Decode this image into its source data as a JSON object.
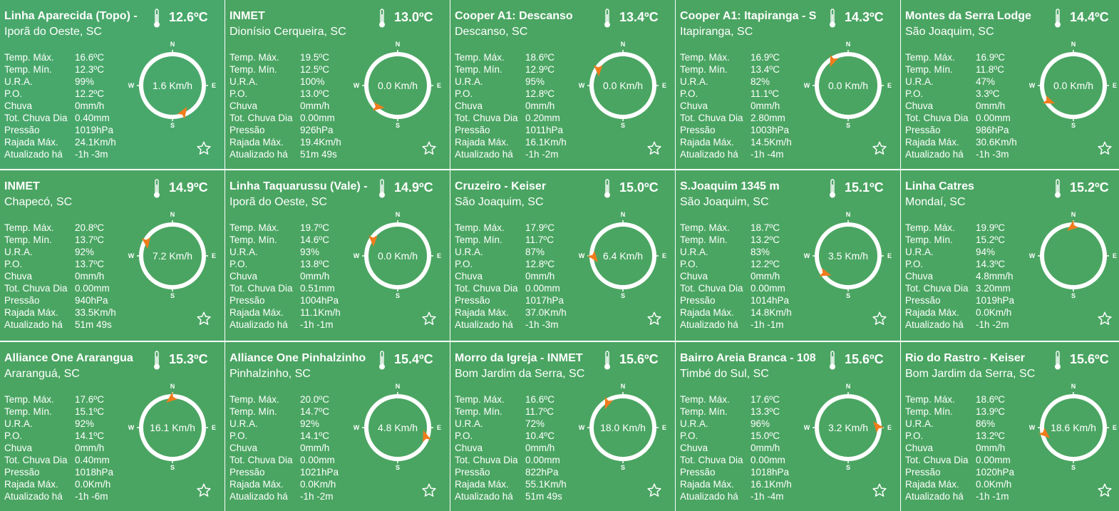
{
  "labels": {
    "temp_max": "Temp. Máx.",
    "temp_min": "Temp. Mín.",
    "ura": "U.R.A.",
    "po": "P.O.",
    "chuva": "Chuva",
    "tot_chuva": "Tot. Chuva Dia",
    "pressao": "Pressão",
    "rajada": "Rajada Máx.",
    "atualizado": "Atualizado há"
  },
  "compass_letters": {
    "n": "N",
    "s": "S",
    "e": "E",
    "w": "W"
  },
  "icons": {
    "thermometer": "thermometer-icon",
    "favorite": "star-outline-icon"
  },
  "colors": {
    "card": "#4aa562",
    "wind_arrow": "#f07c1c"
  },
  "stations": [
    {
      "name": "Linha Aparecida (Topo) -",
      "city": "Iporã do Oeste, SC",
      "temp": "12.6ºC",
      "temp_max": "16.6ºC",
      "temp_min": "12.3ºC",
      "ura": "99%",
      "po": "12.2ºC",
      "chuva": "0mm/h",
      "tot_chuva": "0.40mm",
      "pressao": "1019hPa",
      "rajada": "24.1Km/h",
      "atualizado": "-1h -3m",
      "wind_speed": "1.6 Km/h",
      "wind_dir_deg": 160
    },
    {
      "name": "INMET",
      "city": "Dionísio Cerqueira, SC",
      "temp": "13.0ºC",
      "temp_max": "19.5ºC",
      "temp_min": "12.5ºC",
      "ura": "100%",
      "po": "13.0ºC",
      "chuva": "0mm/h",
      "tot_chuva": "0.00mm",
      "pressao": "926hPa",
      "rajada": "19.4Km/h",
      "atualizado": "51m 49s",
      "wind_speed": "0.0 Km/h",
      "wind_dir_deg": 225
    },
    {
      "name": "Cooper A1: Descanso",
      "city": "Descanso, SC",
      "temp": "13.4ºC",
      "temp_max": "18.6ºC",
      "temp_min": "12.9ºC",
      "ura": "95%",
      "po": "12.8ºC",
      "chuva": "0mm/h",
      "tot_chuva": "0.20mm",
      "pressao": "1011hPa",
      "rajada": "16.1Km/h",
      "atualizado": "-1h -2m",
      "wind_speed": "0.0 Km/h",
      "wind_dir_deg": 305
    },
    {
      "name": "Cooper A1: Itapiranga - S",
      "city": "Itapiranga, SC",
      "temp": "14.3ºC",
      "temp_max": "16.9ºC",
      "temp_min": "13.4ºC",
      "ura": "82%",
      "po": "11.1ºC",
      "chuva": "0mm/h",
      "tot_chuva": "2.80mm",
      "pressao": "1003hPa",
      "rajada": "14.5Km/h",
      "atualizado": "-1h -4m",
      "wind_speed": "0.0 Km/h",
      "wind_dir_deg": 330
    },
    {
      "name": "Montes da Serra Lodge",
      "city": "São Joaquim, SC",
      "temp": "14.4ºC",
      "temp_max": "16.9ºC",
      "temp_min": "11.8ºC",
      "ura": "47%",
      "po": "3.3ºC",
      "chuva": "0mm/h",
      "tot_chuva": "0.00mm",
      "pressao": "986hPa",
      "rajada": "30.6Km/h",
      "atualizado": "-1h -3m",
      "wind_speed": "0.0 Km/h",
      "wind_dir_deg": 240
    },
    {
      "name": "INMET",
      "city": "Chapecó, SC",
      "temp": "14.9ºC",
      "temp_max": "20.8ºC",
      "temp_min": "13.7ºC",
      "ura": "92%",
      "po": "13.7ºC",
      "chuva": "0mm/h",
      "tot_chuva": "0.00mm",
      "pressao": "940hPa",
      "rajada": "33.5Km/h",
      "atualizado": "51m 49s",
      "wind_speed": "7.2 Km/h",
      "wind_dir_deg": 300
    },
    {
      "name": "Linha Taquarussu (Vale) -",
      "city": "Iporã do Oeste, SC",
      "temp": "14.9ºC",
      "temp_max": "19.7ºC",
      "temp_min": "14.6ºC",
      "ura": "93%",
      "po": "13.8ºC",
      "chuva": "0mm/h",
      "tot_chuva": "0.51mm",
      "pressao": "1004hPa",
      "rajada": "11.1Km/h",
      "atualizado": "-1h -1m",
      "wind_speed": "0.0 Km/h",
      "wind_dir_deg": 305
    },
    {
      "name": "Cruzeiro - Keiser",
      "city": "São Joaquim, SC",
      "temp": "15.0ºC",
      "temp_max": "17.9ºC",
      "temp_min": "11.7ºC",
      "ura": "87%",
      "po": "12.8ºC",
      "chuva": "0mm/h",
      "tot_chuva": "0.00mm",
      "pressao": "1017hPa",
      "rajada": "37.0Km/h",
      "atualizado": "-1h -3m",
      "wind_speed": "6.4 Km/h",
      "wind_dir_deg": 270
    },
    {
      "name": "S.Joaquim 1345 m",
      "city": "São Joaquim, SC",
      "temp": "15.1ºC",
      "temp_max": "18.7ºC",
      "temp_min": "13.2ºC",
      "ura": "83%",
      "po": "12.2ºC",
      "chuva": "0mm/h",
      "tot_chuva": "0.00mm",
      "pressao": "1014hPa",
      "rajada": "14.8Km/h",
      "atualizado": "-1h -1m",
      "wind_speed": "3.5 Km/h",
      "wind_dir_deg": 235
    },
    {
      "name": "Linha Catres",
      "city": "Mondaí, SC",
      "temp": "15.2ºC",
      "temp_max": "19.9ºC",
      "temp_min": "15.2ºC",
      "ura": "94%",
      "po": "14.3ºC",
      "chuva": "4.8mm/h",
      "tot_chuva": "3.20mm",
      "pressao": "1019hPa",
      "rajada": "0.0Km/h",
      "atualizado": "-1h -2m",
      "wind_speed": "",
      "wind_dir_deg": 0
    },
    {
      "name": "Alliance One Ararangua",
      "city": "Araranguá, SC",
      "temp": "15.3ºC",
      "temp_max": "17.6ºC",
      "temp_min": "15.1ºC",
      "ura": "92%",
      "po": "14.1ºC",
      "chuva": "0mm/h",
      "tot_chuva": "0.40mm",
      "pressao": "1018hPa",
      "rajada": "0.0Km/h",
      "atualizado": "-1h -6m",
      "wind_speed": "16.1 Km/h",
      "wind_dir_deg": 0
    },
    {
      "name": "Alliance One Pinhalzinho",
      "city": "Pinhalzinho, SC",
      "temp": "15.4ºC",
      "temp_max": "20.0ºC",
      "temp_min": "14.7ºC",
      "ura": "92%",
      "po": "14.1ºC",
      "chuva": "0mm/h",
      "tot_chuva": "0.00mm",
      "pressao": "1021hPa",
      "rajada": "0.0Km/h",
      "atualizado": "-1h -2m",
      "wind_speed": "4.8 Km/h",
      "wind_dir_deg": 110
    },
    {
      "name": "Morro da Igreja - INMET",
      "city": "Bom Jardim da Serra, SC",
      "temp": "15.6ºC",
      "temp_max": "16.6ºC",
      "temp_min": "11.7ºC",
      "ura": "72%",
      "po": "10.4ºC",
      "chuva": "0mm/h",
      "tot_chuva": "0.00mm",
      "pressao": "822hPa",
      "rajada": "55.1Km/h",
      "atualizado": "51m 49s",
      "wind_speed": "18.0 Km/h",
      "wind_dir_deg": 330
    },
    {
      "name": "Bairro Areia Branca - 108",
      "city": "Timbé do Sul, SC",
      "temp": "15.6ºC",
      "temp_max": "17.6ºC",
      "temp_min": "13.3ºC",
      "ura": "96%",
      "po": "15.0ºC",
      "chuva": "0mm/h",
      "tot_chuva": "0.00mm",
      "pressao": "1018hPa",
      "rajada": "16.1Km/h",
      "atualizado": "-1h -4m",
      "wind_speed": "3.2 Km/h",
      "wind_dir_deg": 90
    },
    {
      "name": "Rio do Rastro - Keiser",
      "city": "Bom Jardim da Serra, SC",
      "temp": "15.6ºC",
      "temp_max": "18.6ºC",
      "temp_min": "13.9ºC",
      "ura": "86%",
      "po": "13.2ºC",
      "chuva": "0mm/h",
      "tot_chuva": "0.00mm",
      "pressao": "1020hPa",
      "rajada": "0.0Km/h",
      "atualizado": "-1h -1m",
      "wind_speed": "18.6 Km/h",
      "wind_dir_deg": 260
    }
  ]
}
